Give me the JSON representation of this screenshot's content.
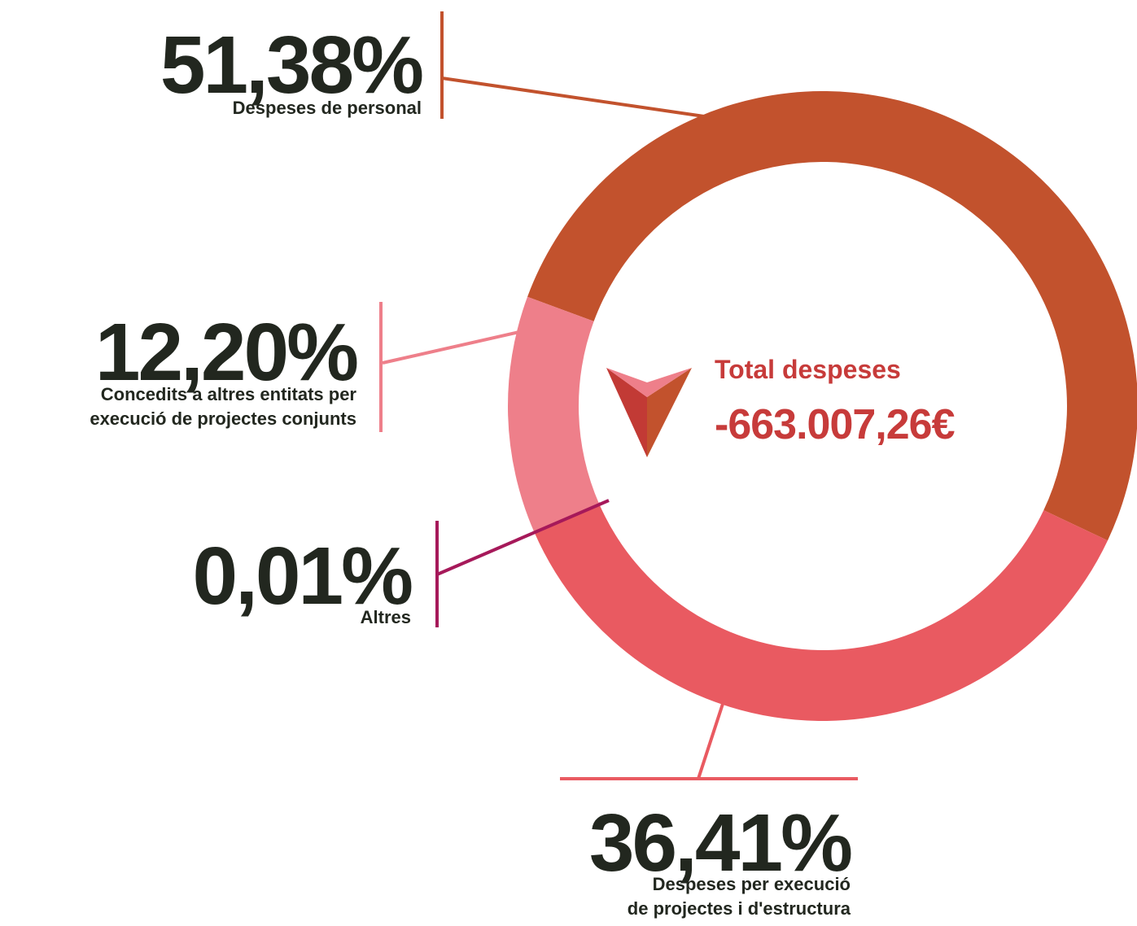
{
  "chart_data": {
    "type": "pie",
    "categories": [
      "Despeses de personal",
      "Despeses per execució\nde projectes i d'estructura",
      "Altres",
      "Concedits a altres entitats per\nexecució de projectes conjunts"
    ],
    "values": [
      51.38,
      36.41,
      0.01,
      12.2
    ],
    "value_labels": [
      "51,38%",
      "36,41%",
      "0,01%",
      "12,20%"
    ],
    "colors": [
      "#c2522d",
      "#e95a61",
      "#a6195a",
      "#ee7f8a"
    ],
    "center_title": "Total despeses",
    "center_value": "-663.007,26€"
  }
}
